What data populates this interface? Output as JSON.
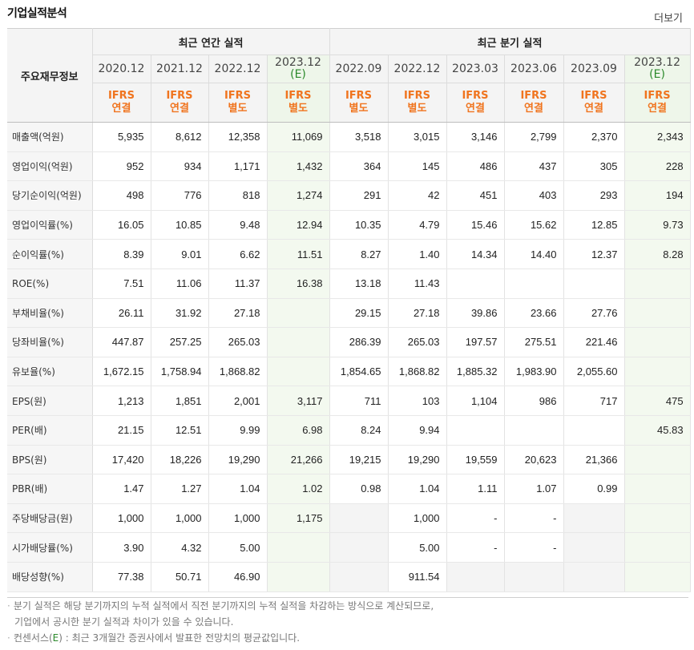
{
  "header": {
    "title": "기업실적분석",
    "more_label": "더보기"
  },
  "table": {
    "corner_label": "주요재무정보",
    "group_annual": "최근 연간 실적",
    "group_quarter": "최근 분기 실적",
    "periods": [
      {
        "line1": "2020.12",
        "line2": "",
        "acc1": "IFRS",
        "acc2": "연결",
        "est": false
      },
      {
        "line1": "2021.12",
        "line2": "",
        "acc1": "IFRS",
        "acc2": "연결",
        "est": false
      },
      {
        "line1": "2022.12",
        "line2": "",
        "acc1": "IFRS",
        "acc2": "별도",
        "est": false
      },
      {
        "line1": "2023.12",
        "line2": "(E)",
        "acc1": "IFRS",
        "acc2": "별도",
        "est": true
      },
      {
        "line1": "2022.09",
        "line2": "",
        "acc1": "IFRS",
        "acc2": "별도",
        "est": false
      },
      {
        "line1": "2022.12",
        "line2": "",
        "acc1": "IFRS",
        "acc2": "별도",
        "est": false
      },
      {
        "line1": "2023.03",
        "line2": "",
        "acc1": "IFRS",
        "acc2": "연결",
        "est": false
      },
      {
        "line1": "2023.06",
        "line2": "",
        "acc1": "IFRS",
        "acc2": "연결",
        "est": false
      },
      {
        "line1": "2023.09",
        "line2": "",
        "acc1": "IFRS",
        "acc2": "연결",
        "est": false
      },
      {
        "line1": "2023.12",
        "line2": "(E)",
        "acc1": "IFRS",
        "acc2": "연결",
        "est": true
      }
    ],
    "rows": [
      {
        "label": "매출액(억원)",
        "values": [
          "5,935",
          "8,612",
          "12,358",
          "11,069",
          "3,518",
          "3,015",
          "3,146",
          "2,799",
          "2,370",
          "2,343"
        ],
        "group_start": false
      },
      {
        "label": "영업이익(억원)",
        "values": [
          "952",
          "934",
          "1,171",
          "1,432",
          "364",
          "145",
          "486",
          "437",
          "305",
          "228"
        ],
        "group_start": false
      },
      {
        "label": "당기순이익(억원)",
        "values": [
          "498",
          "776",
          "818",
          "1,274",
          "291",
          "42",
          "451",
          "403",
          "293",
          "194"
        ],
        "group_start": false
      },
      {
        "label": "영업이익률(%)",
        "values": [
          "16.05",
          "10.85",
          "9.48",
          "12.94",
          "10.35",
          "4.79",
          "15.46",
          "15.62",
          "12.85",
          "9.73"
        ],
        "group_start": true
      },
      {
        "label": "순이익률(%)",
        "values": [
          "8.39",
          "9.01",
          "6.62",
          "11.51",
          "8.27",
          "1.40",
          "14.34",
          "14.40",
          "12.37",
          "8.28"
        ],
        "group_start": false
      },
      {
        "label": "ROE(%)",
        "values": [
          "7.51",
          "11.06",
          "11.37",
          "16.38",
          "13.18",
          "11.43",
          "",
          "",
          "",
          ""
        ],
        "group_start": false
      },
      {
        "label": "부채비율(%)",
        "values": [
          "26.11",
          "31.92",
          "27.18",
          "",
          "29.15",
          "27.18",
          "39.86",
          "23.66",
          "27.76",
          ""
        ],
        "group_start": true
      },
      {
        "label": "당좌비율(%)",
        "values": [
          "447.87",
          "257.25",
          "265.03",
          "",
          "286.39",
          "265.03",
          "197.57",
          "275.51",
          "221.46",
          ""
        ],
        "group_start": false
      },
      {
        "label": "유보율(%)",
        "values": [
          "1,672.15",
          "1,758.94",
          "1,868.82",
          "",
          "1,854.65",
          "1,868.82",
          "1,885.32",
          "1,983.90",
          "2,055.60",
          ""
        ],
        "group_start": false
      },
      {
        "label": "EPS(원)",
        "values": [
          "1,213",
          "1,851",
          "2,001",
          "3,117",
          "711",
          "103",
          "1,104",
          "986",
          "717",
          "475"
        ],
        "group_start": true
      },
      {
        "label": "PER(배)",
        "values": [
          "21.15",
          "12.51",
          "9.99",
          "6.98",
          "8.24",
          "9.94",
          "",
          "",
          "",
          "45.83"
        ],
        "group_start": false
      },
      {
        "label": "BPS(원)",
        "values": [
          "17,420",
          "18,226",
          "19,290",
          "21,266",
          "19,215",
          "19,290",
          "19,559",
          "20,623",
          "21,366",
          ""
        ],
        "group_start": false
      },
      {
        "label": "PBR(배)",
        "values": [
          "1.47",
          "1.27",
          "1.04",
          "1.02",
          "0.98",
          "1.04",
          "1.11",
          "1.07",
          "0.99",
          ""
        ],
        "group_start": false
      },
      {
        "label": "주당배당금(원)",
        "values": [
          "1,000",
          "1,000",
          "1,000",
          "1,175",
          "",
          "1,000",
          "-",
          "-",
          "",
          ""
        ],
        "group_start": true,
        "gray": [
          4,
          8
        ]
      },
      {
        "label": "시가배당률(%)",
        "values": [
          "3.90",
          "4.32",
          "5.00",
          "",
          "",
          "5.00",
          "-",
          "-",
          "",
          ""
        ],
        "group_start": false,
        "gray": [
          4,
          8
        ]
      },
      {
        "label": "배당성향(%)",
        "values": [
          "77.38",
          "50.71",
          "46.90",
          "",
          "",
          "911.54",
          "",
          "",
          "",
          ""
        ],
        "group_start": false,
        "gray": [
          4,
          6,
          7,
          8
        ]
      }
    ]
  },
  "notes": {
    "line1": "분기 실적은 해당 분기까지의 누적 실적에서 직전 분기까지의 누적 실적을 차감하는 방식으로 계산되므로,",
    "line2": "기업에서 공시한 분기 실적과 차이가 있을 수 있습니다.",
    "line3_prefix": "컨센서스(",
    "line3_e": "E",
    "line3_suffix": ") : 최근 3개월간 증권사에서 발표한 전망치의 평균값입니다."
  }
}
